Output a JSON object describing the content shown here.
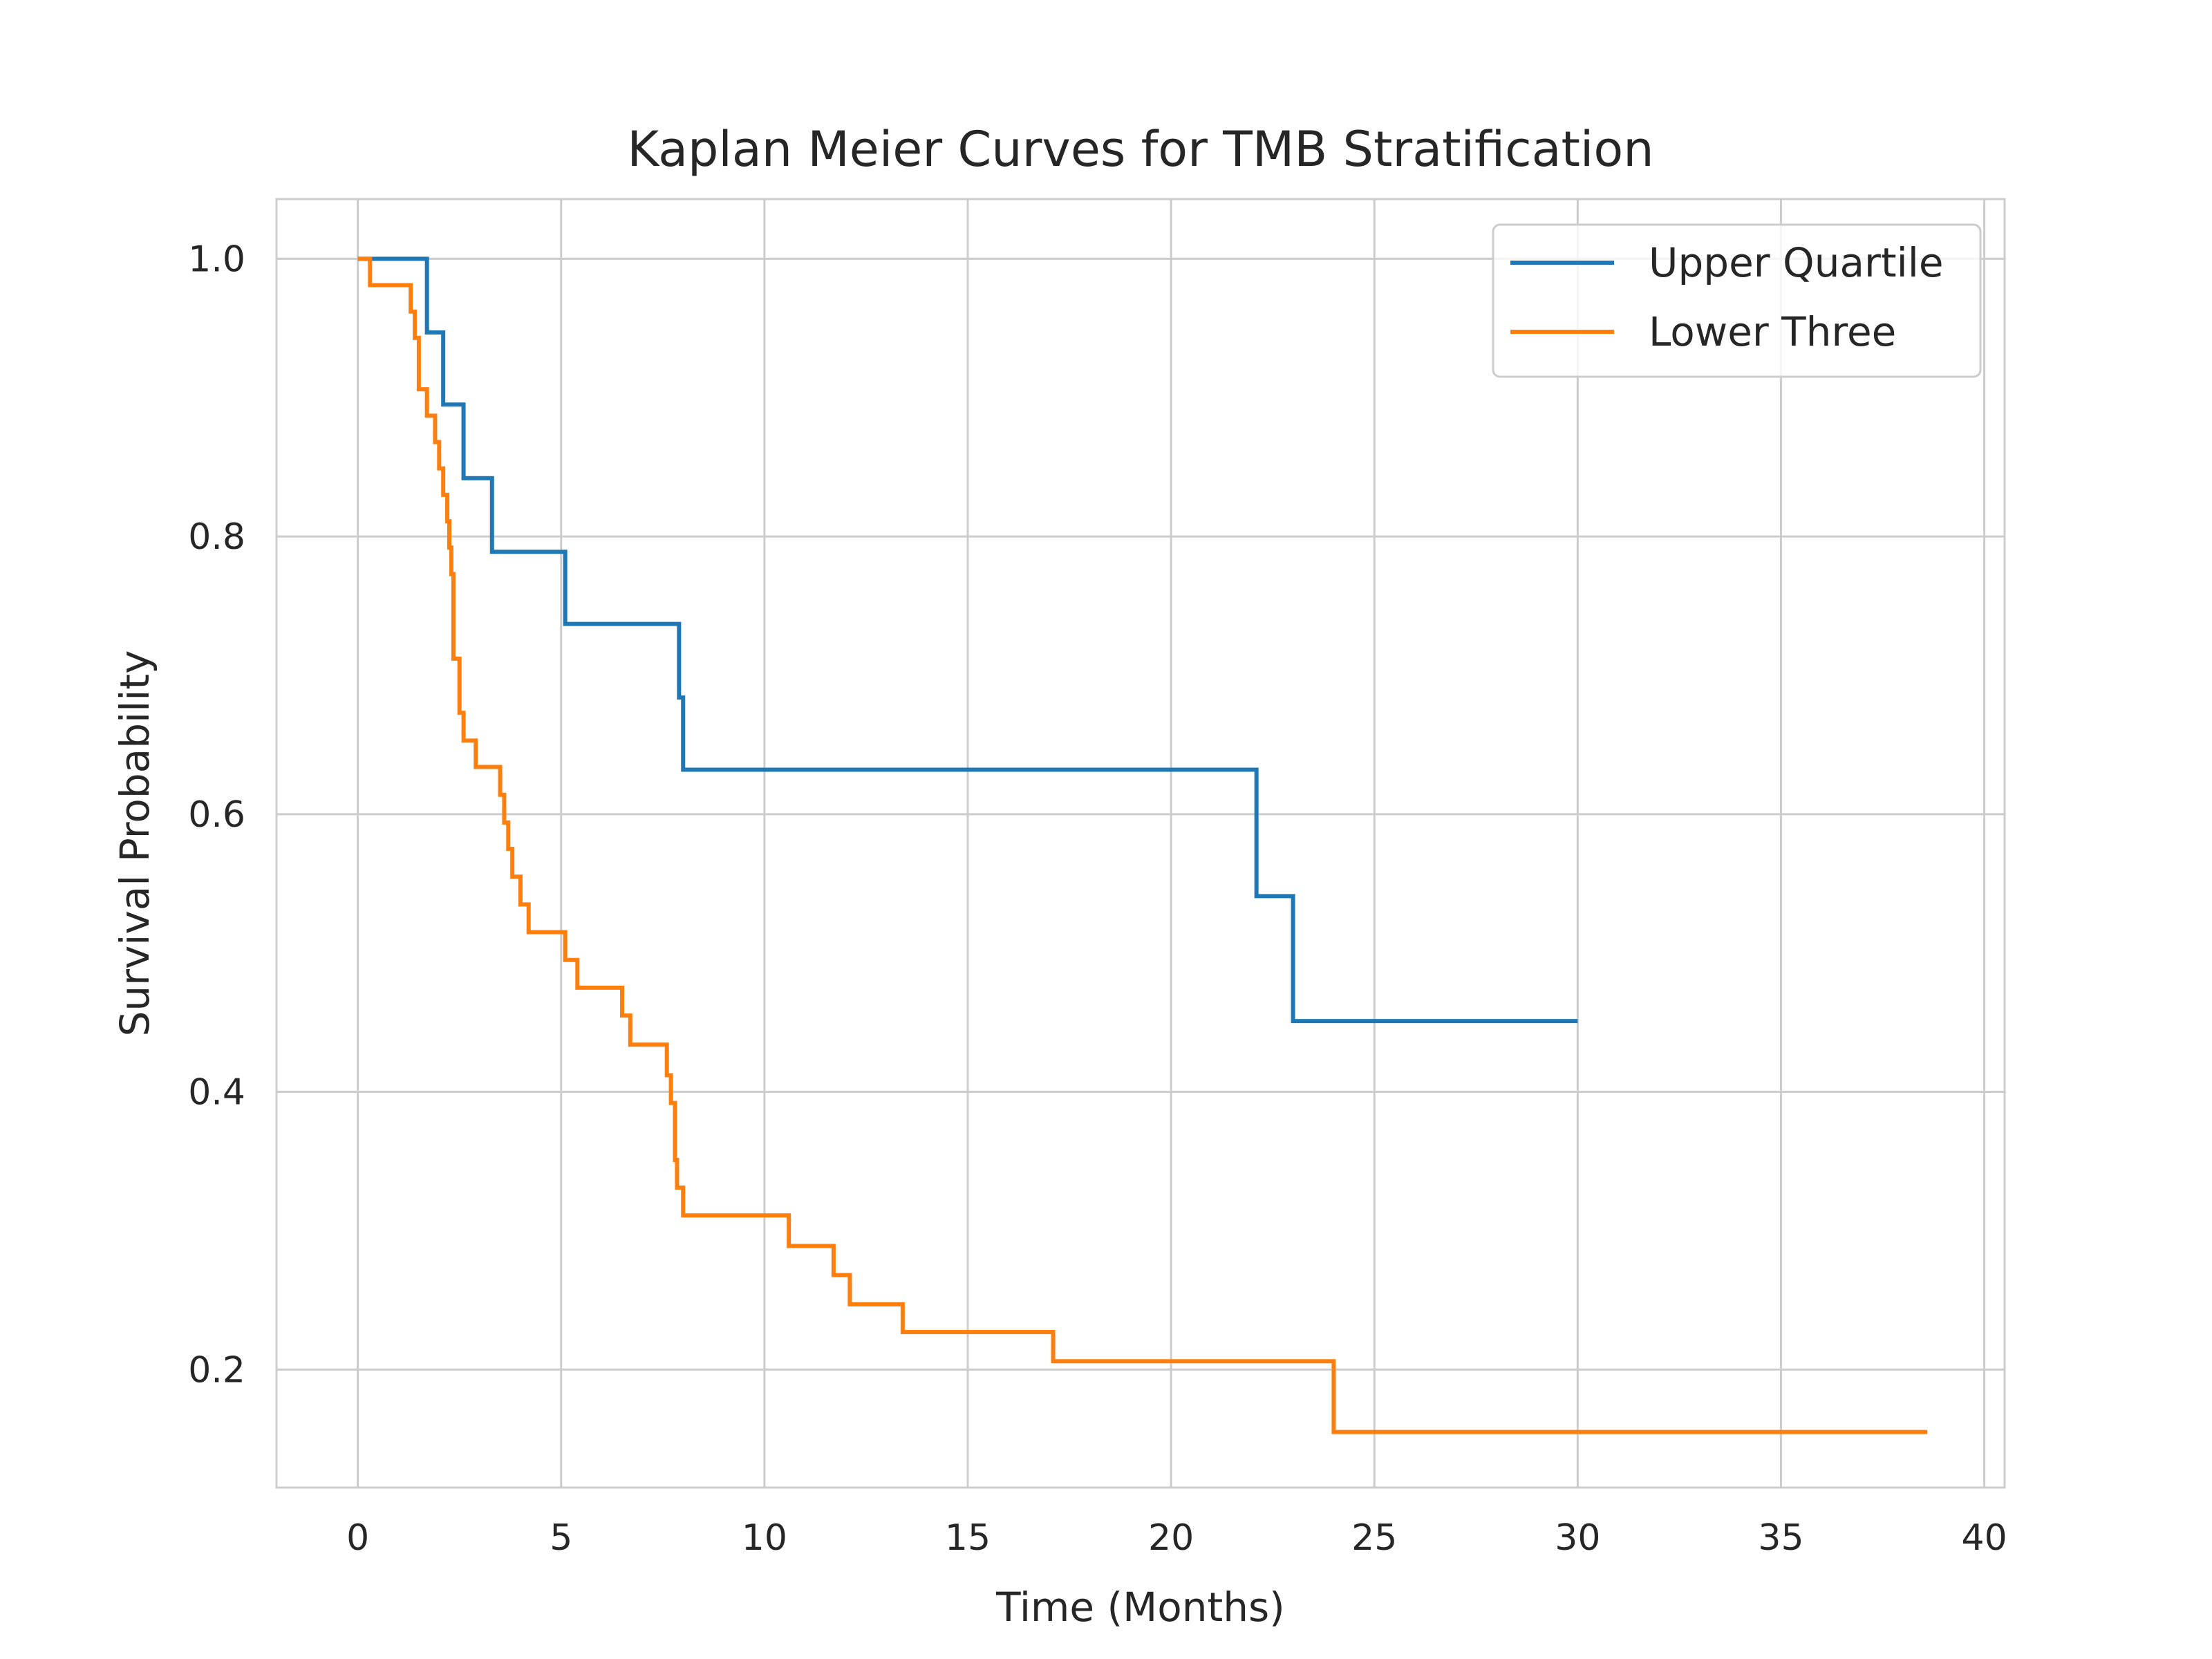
{
  "chart_data": {
    "type": "line",
    "step": true,
    "title": "Kaplan Meier Curves for TMB Stratification",
    "xlabel": "Time (Months)",
    "ylabel": "Survival Probability",
    "xlim": [
      -2,
      40.5
    ],
    "ylim": [
      0.115,
      1.043
    ],
    "xticks": [
      0,
      5,
      10,
      15,
      20,
      25,
      30,
      35,
      40
    ],
    "xtick_labels": [
      "0",
      "5",
      "10",
      "15",
      "20",
      "25",
      "30",
      "35",
      "40"
    ],
    "yticks": [
      0.2,
      0.4,
      0.6,
      0.8,
      1.0
    ],
    "ytick_labels": [
      "0.2",
      "0.4",
      "0.6",
      "0.8",
      "1.0"
    ],
    "grid": true,
    "legend_position": "top-right",
    "series": [
      {
        "name": "Upper Quartile",
        "color": "#1f77b4",
        "x": [
          0,
          1.7,
          2.1,
          2.6,
          3.3,
          5.1,
          7.9,
          8.0,
          22.1,
          23.0,
          30.0
        ],
        "y": [
          1.0,
          0.947,
          0.895,
          0.842,
          0.789,
          0.737,
          0.684,
          0.632,
          0.541,
          0.451,
          0.451
        ]
      },
      {
        "name": "Lower Three",
        "color": "#ff7f0e",
        "x": [
          0,
          0.3,
          1.3,
          1.4,
          1.5,
          1.7,
          1.9,
          2.0,
          2.1,
          2.2,
          2.25,
          2.3,
          2.35,
          2.5,
          2.6,
          2.9,
          3.5,
          3.6,
          3.7,
          3.8,
          4.0,
          4.2,
          5.1,
          5.4,
          6.5,
          6.7,
          7.6,
          7.7,
          7.8,
          7.85,
          8.0,
          8.1,
          10.6,
          11.7,
          12.1,
          13.4,
          17.1,
          24.0,
          38.6
        ],
        "y": [
          1.0,
          0.981,
          0.962,
          0.943,
          0.906,
          0.887,
          0.868,
          0.849,
          0.83,
          0.811,
          0.792,
          0.773,
          0.712,
          0.673,
          0.653,
          0.634,
          0.614,
          0.594,
          0.575,
          0.555,
          0.535,
          0.515,
          0.495,
          0.475,
          0.455,
          0.434,
          0.412,
          0.392,
          0.351,
          0.331,
          0.311,
          0.311,
          0.289,
          0.268,
          0.247,
          0.227,
          0.206,
          0.155,
          0.155
        ]
      }
    ]
  }
}
